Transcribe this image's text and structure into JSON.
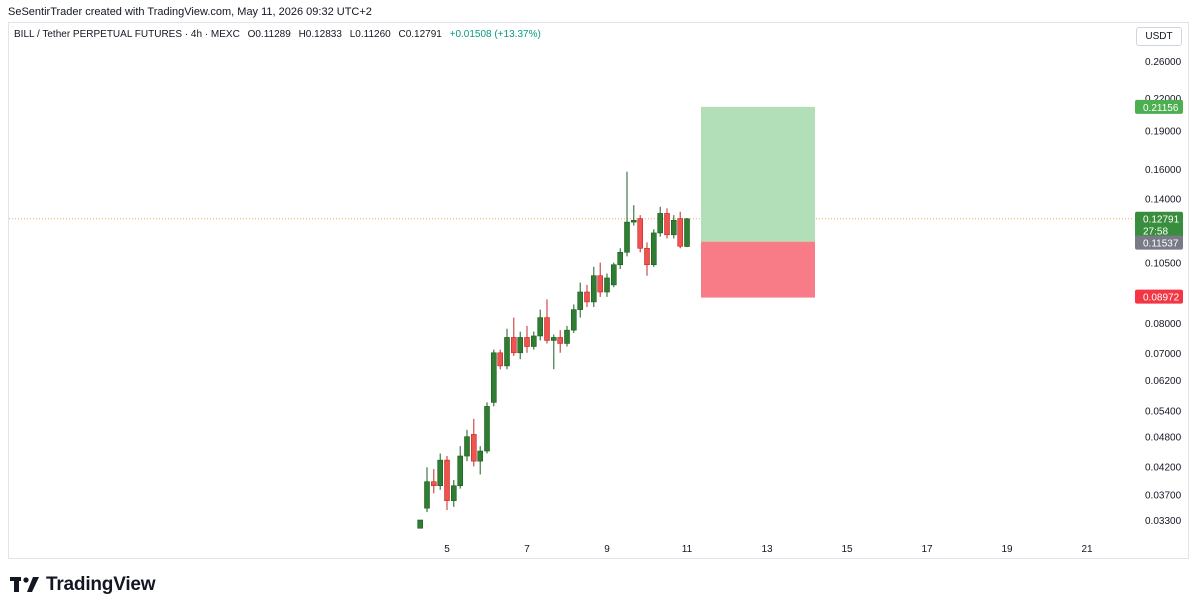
{
  "caption": "SeSentirTrader created with TradingView.com, May 11, 2026 09:32 UTC+2",
  "brand": {
    "name": "TradingView",
    "logo_icon": "tradingview-logo-icon"
  },
  "legend": {
    "symbol": "BILL / Tether PERPETUAL FUTURES · 4h · MEXC",
    "open": "O0.11289",
    "high": "H0.12833",
    "low": "L0.11260",
    "close": "C0.12791",
    "change": "+0.01508 (+13.37%)"
  },
  "currency": "USDT",
  "colors": {
    "up": "#089981",
    "down": "#f23645",
    "up_candle": "#2e7d32",
    "down_candle": "#ef5350",
    "target_zone": "#b2dfb7",
    "stop_zone": "#f77c87",
    "target_label": "#4caf50",
    "stop_label": "#f23645",
    "entry_label": "#787b86",
    "price_label": "#388e3c",
    "current_line": "#f0a868"
  },
  "chart_data": {
    "type": "candlestick",
    "y_scale": "log",
    "y_ticks": [
      "0.26000",
      "0.22000",
      "0.19000",
      "0.16000",
      "0.14000",
      "0.10500",
      "0.08000",
      "0.07000",
      "0.06200",
      "0.05400",
      "0.04800",
      "0.04200",
      "0.03700",
      "0.03300"
    ],
    "x_ticks": [
      "5",
      "7",
      "9",
      "11",
      "13",
      "15",
      "17",
      "19",
      "21"
    ],
    "x_tick_days": [
      5,
      7,
      9,
      11,
      13,
      15,
      17,
      19,
      21
    ],
    "current_price": {
      "value": "0.12791",
      "countdown": "27:58"
    },
    "position": {
      "target": "0.21156",
      "entry": "0.11537",
      "stop": "0.08972",
      "start_day": 11.35,
      "end_day": 14.2
    },
    "candles": [
      {
        "t": 4.33,
        "o": 0.0318,
        "h": 0.033,
        "l": 0.0318,
        "c": 0.033
      },
      {
        "t": 4.5,
        "o": 0.0348,
        "h": 0.0418,
        "l": 0.0342,
        "c": 0.0392
      },
      {
        "t": 4.67,
        "o": 0.0392,
        "h": 0.0415,
        "l": 0.0372,
        "c": 0.0385
      },
      {
        "t": 4.83,
        "o": 0.0385,
        "h": 0.0445,
        "l": 0.0378,
        "c": 0.0432
      },
      {
        "t": 5.0,
        "o": 0.0432,
        "h": 0.044,
        "l": 0.0345,
        "c": 0.036
      },
      {
        "t": 5.17,
        "o": 0.036,
        "h": 0.0395,
        "l": 0.035,
        "c": 0.0385
      },
      {
        "t": 5.33,
        "o": 0.0385,
        "h": 0.046,
        "l": 0.038,
        "c": 0.044
      },
      {
        "t": 5.5,
        "o": 0.044,
        "h": 0.0495,
        "l": 0.043,
        "c": 0.048
      },
      {
        "t": 5.67,
        "o": 0.0485,
        "h": 0.052,
        "l": 0.042,
        "c": 0.043
      },
      {
        "t": 5.83,
        "o": 0.043,
        "h": 0.046,
        "l": 0.0405,
        "c": 0.045
      },
      {
        "t": 6.0,
        "o": 0.045,
        "h": 0.056,
        "l": 0.0445,
        "c": 0.055
      },
      {
        "t": 6.17,
        "o": 0.056,
        "h": 0.071,
        "l": 0.055,
        "c": 0.07
      },
      {
        "t": 6.33,
        "o": 0.07,
        "h": 0.071,
        "l": 0.065,
        "c": 0.066
      },
      {
        "t": 6.5,
        "o": 0.066,
        "h": 0.078,
        "l": 0.065,
        "c": 0.075
      },
      {
        "t": 6.67,
        "o": 0.075,
        "h": 0.082,
        "l": 0.069,
        "c": 0.07
      },
      {
        "t": 6.83,
        "o": 0.07,
        "h": 0.077,
        "l": 0.068,
        "c": 0.075
      },
      {
        "t": 7.0,
        "o": 0.075,
        "h": 0.079,
        "l": 0.07,
        "c": 0.072
      },
      {
        "t": 7.17,
        "o": 0.072,
        "h": 0.077,
        "l": 0.071,
        "c": 0.0755
      },
      {
        "t": 7.33,
        "o": 0.0755,
        "h": 0.085,
        "l": 0.074,
        "c": 0.082
      },
      {
        "t": 7.5,
        "o": 0.082,
        "h": 0.089,
        "l": 0.073,
        "c": 0.074
      },
      {
        "t": 7.67,
        "o": 0.074,
        "h": 0.076,
        "l": 0.065,
        "c": 0.075
      },
      {
        "t": 7.83,
        "o": 0.075,
        "h": 0.0775,
        "l": 0.07,
        "c": 0.073
      },
      {
        "t": 8.0,
        "o": 0.073,
        "h": 0.079,
        "l": 0.072,
        "c": 0.0775
      },
      {
        "t": 8.17,
        "o": 0.0775,
        "h": 0.087,
        "l": 0.0765,
        "c": 0.085
      },
      {
        "t": 8.33,
        "o": 0.085,
        "h": 0.096,
        "l": 0.082,
        "c": 0.092
      },
      {
        "t": 8.5,
        "o": 0.092,
        "h": 0.095,
        "l": 0.086,
        "c": 0.088
      },
      {
        "t": 8.67,
        "o": 0.088,
        "h": 0.103,
        "l": 0.086,
        "c": 0.099
      },
      {
        "t": 8.83,
        "o": 0.099,
        "h": 0.105,
        "l": 0.09,
        "c": 0.092
      },
      {
        "t": 9.0,
        "o": 0.092,
        "h": 0.1,
        "l": 0.09,
        "c": 0.098
      },
      {
        "t": 9.17,
        "o": 0.095,
        "h": 0.105,
        "l": 0.094,
        "c": 0.104
      },
      {
        "t": 9.33,
        "o": 0.104,
        "h": 0.112,
        "l": 0.102,
        "c": 0.11
      },
      {
        "t": 9.5,
        "o": 0.11,
        "h": 0.158,
        "l": 0.108,
        "c": 0.126
      },
      {
        "t": 9.67,
        "o": 0.126,
        "h": 0.136,
        "l": 0.124,
        "c": 0.127
      },
      {
        "t": 9.83,
        "o": 0.128,
        "h": 0.13,
        "l": 0.11,
        "c": 0.112
      },
      {
        "t": 10.0,
        "o": 0.112,
        "h": 0.115,
        "l": 0.099,
        "c": 0.104
      },
      {
        "t": 10.17,
        "o": 0.104,
        "h": 0.122,
        "l": 0.103,
        "c": 0.12
      },
      {
        "t": 10.33,
        "o": 0.12,
        "h": 0.135,
        "l": 0.118,
        "c": 0.131
      },
      {
        "t": 10.5,
        "o": 0.131,
        "h": 0.134,
        "l": 0.117,
        "c": 0.119
      },
      {
        "t": 10.67,
        "o": 0.119,
        "h": 0.13,
        "l": 0.117,
        "c": 0.127
      },
      {
        "t": 10.83,
        "o": 0.128,
        "h": 0.132,
        "l": 0.112,
        "c": 0.113
      },
      {
        "t": 11.0,
        "o": 0.1129,
        "h": 0.1283,
        "l": 0.1126,
        "c": 0.1279
      }
    ]
  }
}
